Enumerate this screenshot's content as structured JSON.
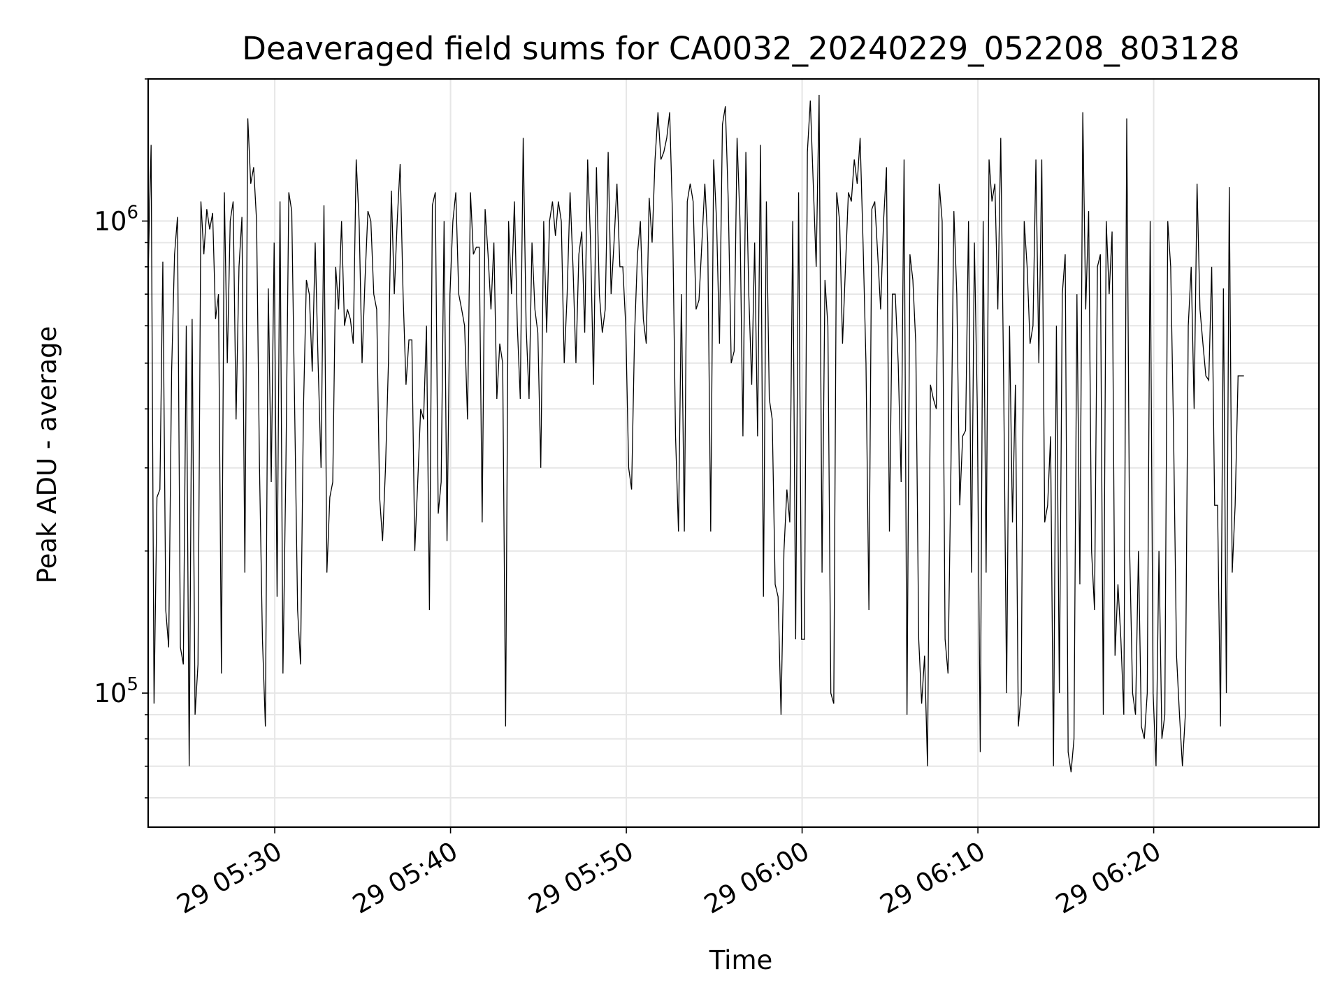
{
  "chart_data": {
    "type": "line",
    "title": "Deaveraged field sums for CA0032_20240229_052208_803128",
    "xlabel": "Time",
    "ylabel": "Peak ADU - average",
    "yscale": "log",
    "xlim": [
      "2024-02-29 05:22:48",
      "2024-02-29 06:29:24"
    ],
    "ylim": [
      52000,
      2000000
    ],
    "grid": true,
    "line_color": "#000000",
    "x_ticks": [
      {
        "value": "2024-02-29 05:30:00",
        "label": "29 05:30"
      },
      {
        "value": "2024-02-29 05:40:00",
        "label": "29 05:40"
      },
      {
        "value": "2024-02-29 05:50:00",
        "label": "29 05:50"
      },
      {
        "value": "2024-02-29 06:00:00",
        "label": "29 06:00"
      },
      {
        "value": "2024-02-29 06:10:00",
        "label": "29 06:10"
      },
      {
        "value": "2024-02-29 06:20:00",
        "label": "29 06:20"
      }
    ],
    "y_ticks": [
      {
        "value": 100000,
        "base": "10",
        "exp": "5"
      },
      {
        "value": 1000000,
        "base": "10",
        "exp": "6"
      }
    ],
    "series": [
      {
        "x_start": "2024-02-29 05:22:48",
        "x_step_seconds": 10,
        "values": [
          780000,
          1450000,
          95000,
          260000,
          270000,
          820000,
          150000,
          125000,
          480000,
          850000,
          1020000,
          125000,
          115000,
          600000,
          70000,
          620000,
          90000,
          115000,
          1100000,
          850000,
          1060000,
          960000,
          1040000,
          620000,
          700000,
          110000,
          1150000,
          500000,
          1000000,
          1100000,
          380000,
          800000,
          1020000,
          180000,
          1650000,
          1200000,
          1300000,
          1000000,
          300000,
          130000,
          85000,
          720000,
          280000,
          900000,
          160000,
          1100000,
          110000,
          300000,
          1150000,
          1050000,
          400000,
          150000,
          115000,
          400000,
          750000,
          700000,
          480000,
          900000,
          500000,
          300000,
          1080000,
          180000,
          260000,
          280000,
          800000,
          650000,
          1000000,
          600000,
          650000,
          620000,
          550000,
          1350000,
          1000000,
          500000,
          750000,
          1050000,
          1000000,
          700000,
          650000,
          260000,
          210000,
          300000,
          500000,
          1160000,
          700000,
          1000000,
          1320000,
          700000,
          450000,
          560000,
          560000,
          200000,
          280000,
          400000,
          380000,
          600000,
          150000,
          1080000,
          1150000,
          240000,
          280000,
          1000000,
          210000,
          700000,
          1000000,
          1150000,
          700000,
          650000,
          600000,
          380000,
          1150000,
          850000,
          880000,
          880000,
          230000,
          1060000,
          850000,
          650000,
          900000,
          420000,
          550000,
          500000,
          85000,
          1000000,
          700000,
          1100000,
          600000,
          420000,
          1500000,
          600000,
          420000,
          900000,
          650000,
          580000,
          300000,
          1000000,
          580000,
          1000000,
          1100000,
          930000,
          1100000,
          1000000,
          500000,
          700000,
          1150000,
          800000,
          500000,
          850000,
          950000,
          580000,
          1350000,
          900000,
          450000,
          1300000,
          700000,
          580000,
          650000,
          1400000,
          700000,
          900000,
          1200000,
          800000,
          800000,
          600000,
          300000,
          270000,
          570000,
          850000,
          1000000,
          620000,
          550000,
          1120000,
          900000,
          1350000,
          1700000,
          1350000,
          1400000,
          1500000,
          1700000,
          1000000,
          350000,
          220000,
          700000,
          220000,
          1100000,
          1200000,
          1100000,
          650000,
          680000,
          900000,
          1200000,
          900000,
          220000,
          1350000,
          1000000,
          550000,
          1600000,
          1750000,
          1100000,
          500000,
          530000,
          1500000,
          1000000,
          350000,
          1400000,
          700000,
          450000,
          900000,
          350000,
          1450000,
          160000,
          1100000,
          420000,
          380000,
          170000,
          160000,
          90000,
          200000,
          270000,
          230000,
          1000000,
          130000,
          1150000,
          130000,
          130000,
          1400000,
          1800000,
          1200000,
          800000,
          1850000,
          180000,
          750000,
          600000,
          100000,
          95000,
          1150000,
          1000000,
          550000,
          800000,
          1150000,
          1100000,
          1350000,
          1200000,
          1500000,
          900000,
          500000,
          150000,
          1060000,
          1100000,
          850000,
          650000,
          1000000,
          1300000,
          220000,
          700000,
          700000,
          500000,
          280000,
          1350000,
          90000,
          850000,
          750000,
          550000,
          130000,
          95000,
          120000,
          70000,
          450000,
          420000,
          400000,
          1200000,
          1000000,
          130000,
          110000,
          300000,
          1050000,
          700000,
          250000,
          350000,
          360000,
          1000000,
          180000,
          900000,
          400000,
          75000,
          1000000,
          180000,
          1350000,
          1100000,
          1200000,
          650000,
          1500000,
          450000,
          100000,
          600000,
          230000,
          450000,
          85000,
          100000,
          1000000,
          800000,
          550000,
          600000,
          1350000,
          500000,
          1350000,
          230000,
          250000,
          350000,
          70000,
          600000,
          100000,
          700000,
          850000,
          75000,
          68000,
          80000,
          700000,
          170000,
          1700000,
          650000,
          1050000,
          200000,
          150000,
          800000,
          850000,
          90000,
          1000000,
          700000,
          950000,
          120000,
          170000,
          130000,
          90000,
          1650000,
          200000,
          100000,
          90000,
          200000,
          85000,
          80000,
          100000,
          1000000,
          100000,
          70000,
          200000,
          80000,
          90000,
          1000000,
          800000,
          350000,
          120000,
          90000,
          70000,
          90000,
          600000,
          800000,
          400000,
          1200000,
          650000,
          550000,
          470000,
          460000,
          800000,
          250000,
          250000,
          85000,
          720000,
          100000,
          1180000,
          180000,
          250000,
          470000,
          470000,
          470000
        ]
      }
    ]
  }
}
